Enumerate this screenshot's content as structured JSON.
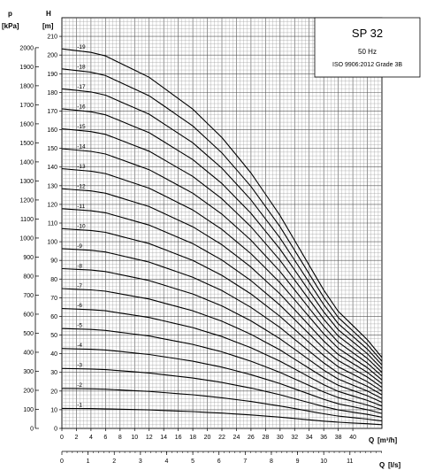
{
  "chart_data": {
    "type": "line",
    "title": "SP 32",
    "subtitle": "50 Hz",
    "standard": "ISO 9906:2012 Grade 3B",
    "y_left_label": "p",
    "y_left_unit": "[kPa]",
    "y_right_label": "H",
    "y_right_unit": "[m]",
    "x_label": "Q",
    "x_unit": "[m³/h]",
    "x2_label": "Q",
    "x2_unit": "[l/s]",
    "xlim": [
      0,
      44
    ],
    "ylim": [
      0,
      220
    ],
    "plim": [
      0,
      2000
    ],
    "h_ticks": [
      "0",
      "10",
      "20",
      "30",
      "40",
      "50",
      "60",
      "70",
      "80",
      "90",
      "100",
      "110",
      "120",
      "130",
      "140",
      "150",
      "160",
      "170",
      "180",
      "190",
      "200",
      "210"
    ],
    "p_ticks": [
      "0",
      "100",
      "200",
      "300",
      "400",
      "500",
      "600",
      "700",
      "800",
      "900",
      "1000",
      "1100",
      "1200",
      "1300",
      "1400",
      "1500",
      "1600",
      "1700",
      "1800",
      "1900",
      "2000"
    ],
    "q_ticks": [
      "0",
      "2",
      "4",
      "6",
      "8",
      "10",
      "12",
      "14",
      "16",
      "18",
      "20",
      "22",
      "24",
      "26",
      "28",
      "30",
      "32",
      "34",
      "36",
      "38",
      "40"
    ],
    "qls_ticks": [
      "0",
      "1",
      "2",
      "3",
      "4",
      "5",
      "6",
      "7",
      "8",
      "9",
      "10",
      "11"
    ],
    "x": [
      0,
      2,
      4,
      6,
      8,
      10,
      12,
      14,
      16,
      18,
      20,
      22,
      24,
      26,
      28,
      30,
      32,
      34,
      36,
      38,
      40,
      42,
      44
    ],
    "per_stage_head": [
      10.7,
      10.65,
      10.6,
      10.5,
      10.3,
      10.1,
      9.9,
      9.6,
      9.3,
      9.0,
      8.6,
      8.2,
      7.7,
      7.2,
      6.6,
      6.0,
      5.3,
      4.6,
      3.9,
      3.3,
      2.9,
      2.5,
      2.0
    ],
    "series": [
      {
        "name": "-1",
        "stages": 1
      },
      {
        "name": "-2",
        "stages": 2
      },
      {
        "name": "-3",
        "stages": 3
      },
      {
        "name": "-4",
        "stages": 4
      },
      {
        "name": "-5",
        "stages": 5
      },
      {
        "name": "-6",
        "stages": 6
      },
      {
        "name": "-7",
        "stages": 7
      },
      {
        "name": "-8",
        "stages": 8
      },
      {
        "name": "-9",
        "stages": 9
      },
      {
        "name": "-10",
        "stages": 10
      },
      {
        "name": "-11",
        "stages": 11
      },
      {
        "name": "-12",
        "stages": 12
      },
      {
        "name": "-13",
        "stages": 13
      },
      {
        "name": "-14",
        "stages": 14
      },
      {
        "name": "-15",
        "stages": 15
      },
      {
        "name": "-16",
        "stages": 16
      },
      {
        "name": "-17",
        "stages": 17
      },
      {
        "name": "-18",
        "stages": 18
      },
      {
        "name": "-19",
        "stages": 19
      }
    ],
    "grid": true
  }
}
